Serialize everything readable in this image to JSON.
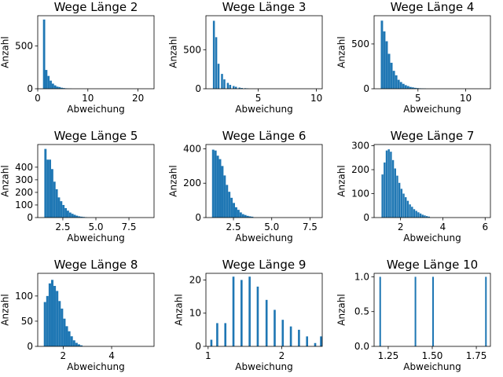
{
  "chart_data": [
    {
      "type": "bar",
      "title": "Wege Länge 2",
      "xlabel": "Abweichung",
      "ylabel": "Anzahl",
      "xlim": [
        0,
        23.2
      ],
      "ylim": [
        0,
        855
      ],
      "xticks": [
        0,
        10,
        20
      ],
      "xtick_labels": [
        "0",
        "10",
        "20"
      ],
      "yticks": [
        0,
        500
      ],
      "ytick_labels": [
        "0",
        "500"
      ],
      "bin_width": 0.44,
      "bins": [
        {
          "x": 1.05,
          "y": 810
        },
        {
          "x": 1.49,
          "y": 220
        },
        {
          "x": 1.93,
          "y": 150
        },
        {
          "x": 2.37,
          "y": 95
        },
        {
          "x": 2.81,
          "y": 60
        },
        {
          "x": 3.25,
          "y": 40
        },
        {
          "x": 3.69,
          "y": 25
        },
        {
          "x": 4.13,
          "y": 20
        },
        {
          "x": 4.57,
          "y": 12
        },
        {
          "x": 5.01,
          "y": 8
        },
        {
          "x": 5.45,
          "y": 5
        },
        {
          "x": 5.89,
          "y": 3
        },
        {
          "x": 6.33,
          "y": 2
        }
      ]
    },
    {
      "type": "bar",
      "title": "Wege Länge 3",
      "xlabel": "Abweichung",
      "ylabel": "Anzahl",
      "xlim": [
        0.5,
        10.5
      ],
      "ylim": [
        0,
        935
      ],
      "xticks": [
        5,
        10
      ],
      "xtick_labels": [
        "5",
        "10"
      ],
      "yticks": [
        0,
        500
      ],
      "ytick_labels": [
        "0",
        "500"
      ],
      "bin_width": 0.17,
      "bins": [
        {
          "x": 1.1,
          "y": 870
        },
        {
          "x": 1.3,
          "y": 660
        },
        {
          "x": 1.5,
          "y": 320
        },
        {
          "x": 1.8,
          "y": 190
        },
        {
          "x": 2.0,
          "y": 120
        },
        {
          "x": 2.3,
          "y": 75
        },
        {
          "x": 2.5,
          "y": 50
        },
        {
          "x": 2.8,
          "y": 35
        },
        {
          "x": 3.0,
          "y": 25
        },
        {
          "x": 3.3,
          "y": 15
        },
        {
          "x": 3.5,
          "y": 10
        },
        {
          "x": 3.8,
          "y": 7
        },
        {
          "x": 4.0,
          "y": 5
        }
      ]
    },
    {
      "type": "bar",
      "title": "Wege Länge 4",
      "xlabel": "Abweichung",
      "ylabel": "Anzahl",
      "xlim": [
        0.4,
        12.6
      ],
      "ylim": [
        0,
        815
      ],
      "xticks": [
        5,
        10
      ],
      "xtick_labels": [
        "5",
        "10"
      ],
      "yticks": [
        0,
        500
      ],
      "ytick_labels": [
        "0",
        "500"
      ],
      "bin_width": 0.24,
      "bins": [
        {
          "x": 1.1,
          "y": 760
        },
        {
          "x": 1.35,
          "y": 640
        },
        {
          "x": 1.6,
          "y": 530
        },
        {
          "x": 1.85,
          "y": 390
        },
        {
          "x": 2.1,
          "y": 290
        },
        {
          "x": 2.35,
          "y": 200
        },
        {
          "x": 2.6,
          "y": 150
        },
        {
          "x": 2.85,
          "y": 100
        },
        {
          "x": 3.1,
          "y": 75
        },
        {
          "x": 3.35,
          "y": 55
        },
        {
          "x": 3.6,
          "y": 40
        },
        {
          "x": 3.85,
          "y": 30
        },
        {
          "x": 4.1,
          "y": 20
        },
        {
          "x": 4.35,
          "y": 15
        },
        {
          "x": 4.6,
          "y": 10
        },
        {
          "x": 4.85,
          "y": 7
        },
        {
          "x": 5.1,
          "y": 5
        },
        {
          "x": 5.35,
          "y": 4
        },
        {
          "x": 5.6,
          "y": 3
        }
      ]
    },
    {
      "type": "bar",
      "title": "Wege Länge 5",
      "xlabel": "Abweichung",
      "ylabel": "Anzahl",
      "xlim": [
        0.6,
        9.4
      ],
      "ylim": [
        0,
        580
      ],
      "xticks": [
        2.5,
        5.0,
        7.5
      ],
      "xtick_labels": [
        "2.5",
        "5.0",
        "7.5"
      ],
      "yticks": [
        0,
        100,
        200,
        300,
        400
      ],
      "ytick_labels": [
        "0",
        "100",
        "200",
        "300",
        "400"
      ],
      "bin_width": 0.17,
      "bins": [
        {
          "x": 1.1,
          "y": 545
        },
        {
          "x": 1.27,
          "y": 460
        },
        {
          "x": 1.44,
          "y": 460
        },
        {
          "x": 1.61,
          "y": 385
        },
        {
          "x": 1.78,
          "y": 285
        },
        {
          "x": 1.95,
          "y": 225
        },
        {
          "x": 2.12,
          "y": 160
        },
        {
          "x": 2.29,
          "y": 130
        },
        {
          "x": 2.46,
          "y": 100
        },
        {
          "x": 2.63,
          "y": 75
        },
        {
          "x": 2.8,
          "y": 55
        },
        {
          "x": 2.97,
          "y": 40
        },
        {
          "x": 3.14,
          "y": 30
        },
        {
          "x": 3.31,
          "y": 22
        },
        {
          "x": 3.48,
          "y": 15
        },
        {
          "x": 3.65,
          "y": 10
        },
        {
          "x": 3.82,
          "y": 7
        },
        {
          "x": 3.99,
          "y": 5
        },
        {
          "x": 4.16,
          "y": 3
        }
      ]
    },
    {
      "type": "bar",
      "title": "Wege Länge 6",
      "xlabel": "Abweichung",
      "ylabel": "Anzahl",
      "xlim": [
        0.7,
        8.3
      ],
      "ylim": [
        0,
        425
      ],
      "xticks": [
        2.5,
        5.0,
        7.5
      ],
      "xtick_labels": [
        "2.5",
        "5.0",
        "7.5"
      ],
      "yticks": [
        0,
        200,
        400
      ],
      "ytick_labels": [
        "0",
        "200",
        "400"
      ],
      "bin_width": 0.15,
      "bins": [
        {
          "x": 1.1,
          "y": 395
        },
        {
          "x": 1.25,
          "y": 390
        },
        {
          "x": 1.4,
          "y": 360
        },
        {
          "x": 1.55,
          "y": 340
        },
        {
          "x": 1.7,
          "y": 300
        },
        {
          "x": 1.85,
          "y": 245
        },
        {
          "x": 2.0,
          "y": 190
        },
        {
          "x": 2.15,
          "y": 150
        },
        {
          "x": 2.3,
          "y": 115
        },
        {
          "x": 2.45,
          "y": 85
        },
        {
          "x": 2.6,
          "y": 60
        },
        {
          "x": 2.75,
          "y": 45
        },
        {
          "x": 2.9,
          "y": 30
        },
        {
          "x": 3.05,
          "y": 20
        },
        {
          "x": 3.2,
          "y": 15
        },
        {
          "x": 3.35,
          "y": 10
        },
        {
          "x": 3.5,
          "y": 7
        },
        {
          "x": 3.65,
          "y": 5
        }
      ]
    },
    {
      "type": "bar",
      "title": "Wege Länge 7",
      "xlabel": "Abweichung",
      "ylabel": "Anzahl",
      "xlim": [
        0.75,
        6.25
      ],
      "ylim": [
        0,
        305
      ],
      "xticks": [
        2,
        4,
        6
      ],
      "xtick_labels": [
        "2",
        "4",
        "6"
      ],
      "yticks": [
        0,
        100,
        200,
        300
      ],
      "ytick_labels": [
        "0",
        "100",
        "200",
        "300"
      ],
      "bin_width": 0.09,
      "bins": [
        {
          "x": 1.1,
          "y": 180
        },
        {
          "x": 1.2,
          "y": 230
        },
        {
          "x": 1.3,
          "y": 280
        },
        {
          "x": 1.4,
          "y": 285
        },
        {
          "x": 1.5,
          "y": 275
        },
        {
          "x": 1.6,
          "y": 240
        },
        {
          "x": 1.7,
          "y": 205
        },
        {
          "x": 1.8,
          "y": 175
        },
        {
          "x": 1.9,
          "y": 145
        },
        {
          "x": 2.0,
          "y": 120
        },
        {
          "x": 2.1,
          "y": 100
        },
        {
          "x": 2.2,
          "y": 85
        },
        {
          "x": 2.3,
          "y": 70
        },
        {
          "x": 2.4,
          "y": 55
        },
        {
          "x": 2.5,
          "y": 45
        },
        {
          "x": 2.6,
          "y": 35
        },
        {
          "x": 2.7,
          "y": 28
        },
        {
          "x": 2.8,
          "y": 22
        },
        {
          "x": 2.9,
          "y": 17
        },
        {
          "x": 3.0,
          "y": 12
        },
        {
          "x": 3.1,
          "y": 9
        },
        {
          "x": 3.2,
          "y": 6
        },
        {
          "x": 3.3,
          "y": 4
        }
      ]
    },
    {
      "type": "bar",
      "title": "Wege Länge 8",
      "xlabel": "Abweichung",
      "ylabel": "Anzahl",
      "xlim": [
        0.95,
        5.75
      ],
      "ylim": [
        0,
        145
      ],
      "xticks": [
        2,
        4
      ],
      "xtick_labels": [
        "2",
        "4"
      ],
      "yticks": [
        0,
        50,
        100
      ],
      "ytick_labels": [
        "0",
        "50",
        "100"
      ],
      "bin_width": 0.1,
      "bins": [
        {
          "x": 1.2,
          "y": 88
        },
        {
          "x": 1.3,
          "y": 100
        },
        {
          "x": 1.4,
          "y": 125
        },
        {
          "x": 1.5,
          "y": 132
        },
        {
          "x": 1.6,
          "y": 120
        },
        {
          "x": 1.7,
          "y": 110
        },
        {
          "x": 1.8,
          "y": 90
        },
        {
          "x": 1.9,
          "y": 75
        },
        {
          "x": 2.0,
          "y": 55
        },
        {
          "x": 2.1,
          "y": 40
        },
        {
          "x": 2.2,
          "y": 30
        },
        {
          "x": 2.3,
          "y": 20
        },
        {
          "x": 2.4,
          "y": 12
        },
        {
          "x": 2.5,
          "y": 7
        },
        {
          "x": 2.6,
          "y": 4
        },
        {
          "x": 2.7,
          "y": 2
        }
      ]
    },
    {
      "type": "bar",
      "title": "Wege Länge 9",
      "xlabel": "Abweichung",
      "ylabel": "Anzahl",
      "xlim": [
        0.97,
        2.55
      ],
      "ylim": [
        0,
        22
      ],
      "xticks": [
        1,
        2
      ],
      "xtick_labels": [
        "1",
        "2"
      ],
      "yticks": [
        0,
        10,
        20
      ],
      "ytick_labels": [
        "0",
        "10",
        "20"
      ],
      "bin_width": 0.028,
      "bins": [
        {
          "x": 1.03,
          "y": 2
        },
        {
          "x": 1.11,
          "y": 7
        },
        {
          "x": 1.22,
          "y": 7
        },
        {
          "x": 1.33,
          "y": 21
        },
        {
          "x": 1.44,
          "y": 20
        },
        {
          "x": 1.55,
          "y": 21
        },
        {
          "x": 1.66,
          "y": 18
        },
        {
          "x": 1.78,
          "y": 14
        },
        {
          "x": 1.89,
          "y": 11
        },
        {
          "x": 2.0,
          "y": 8
        },
        {
          "x": 2.11,
          "y": 6
        },
        {
          "x": 2.22,
          "y": 5
        },
        {
          "x": 2.33,
          "y": 3
        },
        {
          "x": 2.44,
          "y": 1
        },
        {
          "x": 2.52,
          "y": 3
        }
      ]
    },
    {
      "type": "bar",
      "title": "Wege Länge 10",
      "xlabel": "Abweichung",
      "ylabel": "Anzahl",
      "xlim": [
        1.17,
        1.83
      ],
      "ylim": [
        0,
        1.05
      ],
      "xticks": [
        1.25,
        1.5,
        1.75
      ],
      "xtick_labels": [
        "1.25",
        "1.50",
        "1.75"
      ],
      "yticks": [
        0,
        0.5,
        1.0
      ],
      "ytick_labels": [
        "0.0",
        "0.5",
        "1.0"
      ],
      "bin_width": 0.009,
      "bins": [
        {
          "x": 1.2,
          "y": 1
        },
        {
          "x": 1.4,
          "y": 1
        },
        {
          "x": 1.5,
          "y": 1
        },
        {
          "x": 1.8,
          "y": 1
        }
      ]
    }
  ],
  "colors": {
    "bar": "#1f77b4",
    "axis": "#000000"
  }
}
